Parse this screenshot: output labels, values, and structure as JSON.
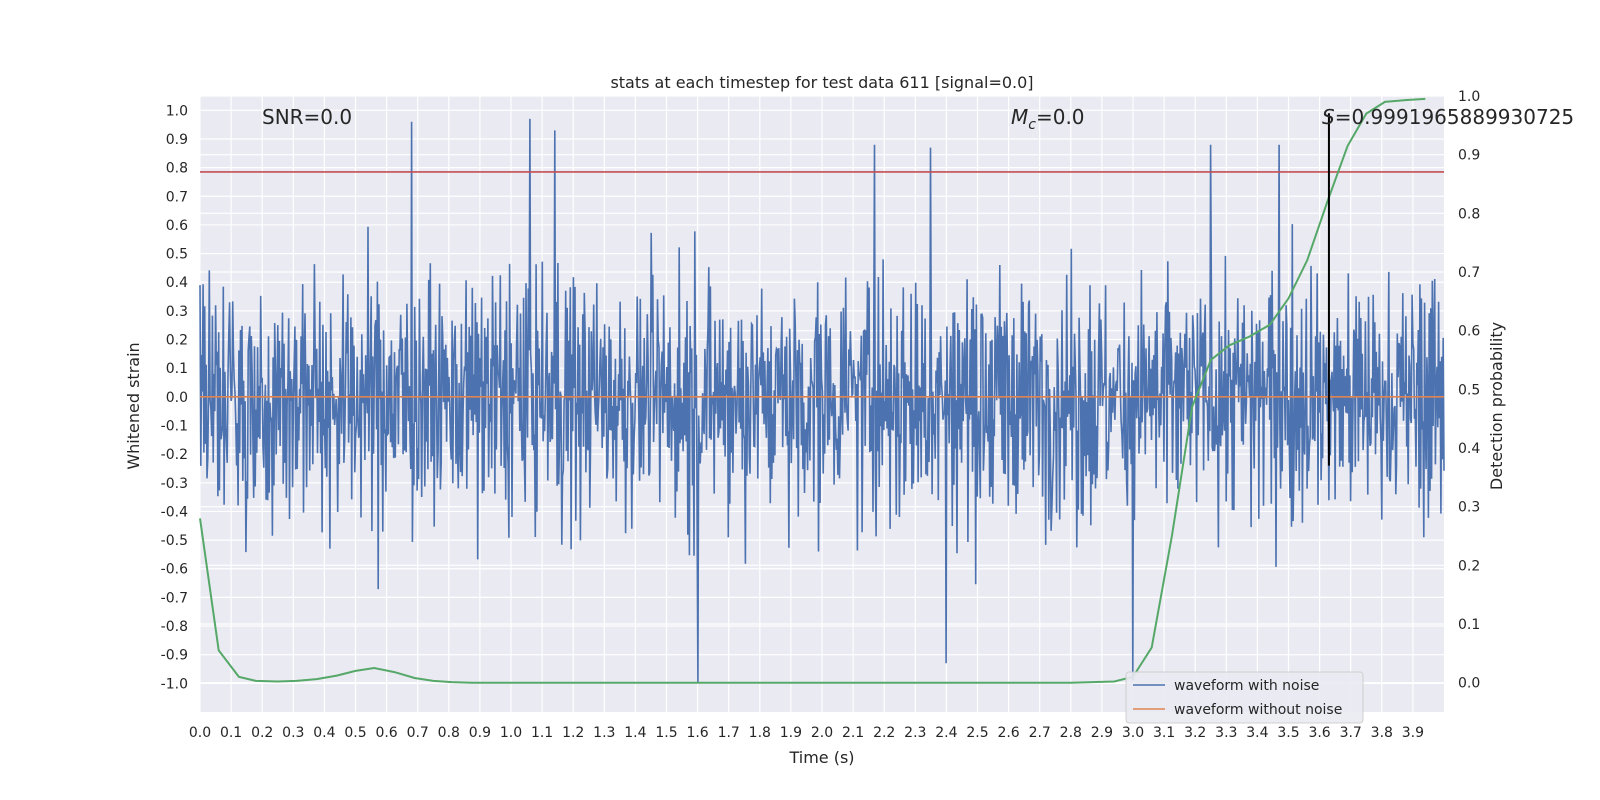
{
  "chart_data": {
    "type": "line",
    "title": "stats at each timestep for test data 611 [signal=0.0]",
    "xlabel": "Time (s)",
    "ylabel": "Whitened strain",
    "y2label": "Detection probability",
    "xlim": [
      0.0,
      4.0
    ],
    "ylim": [
      -1.1,
      1.05
    ],
    "y2lim": [
      -0.05,
      1.0
    ],
    "x_ticks": [
      "0.0",
      "0.1",
      "0.2",
      "0.3",
      "0.4",
      "0.5",
      "0.6",
      "0.7",
      "0.8",
      "0.9",
      "1.0",
      "1.1",
      "1.2",
      "1.3",
      "1.4",
      "1.5",
      "1.6",
      "1.7",
      "1.8",
      "1.9",
      "2.0",
      "2.1",
      "2.2",
      "2.3",
      "2.4",
      "2.5",
      "2.6",
      "2.7",
      "2.8",
      "2.9",
      "3.0",
      "3.1",
      "3.2",
      "3.3",
      "3.4",
      "3.5",
      "3.6",
      "3.7",
      "3.8",
      "3.9"
    ],
    "y_ticks": [
      "1.0",
      "0.9",
      "0.8",
      "0.7",
      "0.6",
      "0.5",
      "0.4",
      "0.3",
      "0.2",
      "0.1",
      "0.0",
      "-0.1",
      "-0.2",
      "-0.3",
      "-0.4",
      "-0.5",
      "-0.6",
      "-0.7",
      "-0.8",
      "-0.9",
      "-1.0"
    ],
    "y2_ticks": [
      "1.0",
      "0.9",
      "0.8",
      "0.7",
      "0.6",
      "0.5",
      "0.4",
      "0.3",
      "0.2",
      "0.1",
      "0.0"
    ],
    "grid": true,
    "annotations": {
      "snr": "SNR=0.0",
      "mc_symbol": "M",
      "mc_sub": "c",
      "mc_value": "=0.0",
      "s_symbol": "S",
      "s_value": "=0.9991965889930725"
    },
    "threshold_line": {
      "y": 0.785,
      "color": "#c44e52"
    },
    "marker_line": {
      "x": 3.63,
      "y_range": [
        -0.24,
        0.99
      ],
      "color": "#000000"
    },
    "noisy_waveform": {
      "name": "waveform with noise",
      "color": "#4c72b0",
      "sample_count": 1600,
      "amplitude_range": [
        -1.0,
        0.98
      ],
      "peaks": [
        {
          "x": 0.68,
          "y": 0.96
        },
        {
          "x": 1.06,
          "y": 0.97
        },
        {
          "x": 1.14,
          "y": 0.93
        },
        {
          "x": 2.17,
          "y": 0.88
        },
        {
          "x": 2.35,
          "y": 0.87
        },
        {
          "x": 3.25,
          "y": 0.88
        },
        {
          "x": 3.47,
          "y": 0.88
        },
        {
          "x": 1.6,
          "y": -1.0
        },
        {
          "x": 3.0,
          "y": -0.99
        },
        {
          "x": 2.4,
          "y": -0.93
        }
      ]
    },
    "clean_waveform": {
      "name": "waveform without noise",
      "color": "#dd8452",
      "x": [
        0.0,
        4.0
      ],
      "y": [
        0.0,
        0.0
      ]
    },
    "detection_probability": {
      "name": "detection probability",
      "color": "#55a868",
      "x": [
        0.0,
        0.06,
        0.125,
        0.18,
        0.25,
        0.31,
        0.375,
        0.44,
        0.5,
        0.56,
        0.625,
        0.69,
        0.75,
        0.81,
        0.875,
        1.0,
        1.5,
        2.0,
        2.5,
        2.8,
        2.94,
        3.0,
        3.06,
        3.125,
        3.19,
        3.25,
        3.31,
        3.375,
        3.44,
        3.5,
        3.56,
        3.625,
        3.69,
        3.75,
        3.81,
        3.875,
        3.94
      ],
      "y": [
        0.28,
        0.055,
        0.01,
        0.003,
        0.002,
        0.003,
        0.006,
        0.012,
        0.02,
        0.025,
        0.018,
        0.008,
        0.003,
        0.001,
        0.0,
        0.0,
        0.0,
        0.0,
        0.0,
        0.0,
        0.002,
        0.01,
        0.06,
        0.25,
        0.47,
        0.55,
        0.575,
        0.59,
        0.61,
        0.655,
        0.72,
        0.82,
        0.915,
        0.97,
        0.99,
        0.993,
        0.995
      ]
    },
    "legend": {
      "position": "lower-right",
      "entries": [
        {
          "label": "waveform with noise",
          "color": "#4c72b0"
        },
        {
          "label": "waveform without noise",
          "color": "#dd8452"
        }
      ]
    }
  }
}
